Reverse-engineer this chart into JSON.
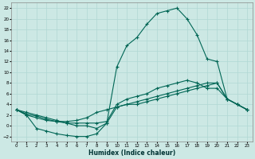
{
  "xlabel": "Humidex (Indice chaleur)",
  "background_color": "#cce8e4",
  "grid_color": "#b0d8d4",
  "line_color": "#006655",
  "xlim": [
    -0.5,
    23.5
  ],
  "ylim": [
    -3,
    23
  ],
  "xticks": [
    0,
    1,
    2,
    3,
    4,
    5,
    6,
    7,
    8,
    9,
    10,
    11,
    12,
    13,
    14,
    15,
    16,
    17,
    18,
    19,
    20,
    21,
    22,
    23
  ],
  "yticks": [
    -2,
    0,
    2,
    4,
    6,
    8,
    10,
    12,
    14,
    16,
    18,
    20,
    22
  ],
  "line_peak_x": [
    0,
    1,
    2,
    3,
    4,
    5,
    6,
    7,
    8,
    9,
    10,
    11,
    12,
    13,
    14,
    15,
    16,
    17,
    18,
    19,
    20,
    21,
    22,
    23
  ],
  "line_peak_y": [
    3,
    2.5,
    2,
    1.5,
    1,
    0.5,
    0,
    0,
    -0.5,
    0.5,
    11,
    15,
    16.5,
    19,
    21,
    21.5,
    22,
    20,
    17,
    12.5,
    12,
    5,
    4,
    3
  ],
  "line_mid_x": [
    0,
    1,
    2,
    3,
    4,
    5,
    6,
    7,
    8,
    9,
    10,
    11,
    12,
    13,
    14,
    15,
    16,
    17,
    18,
    19,
    20,
    21,
    22,
    23
  ],
  "line_mid_y": [
    3,
    2.2,
    1.8,
    1.2,
    0.8,
    0.5,
    0.5,
    0.5,
    0.5,
    0.8,
    4,
    5,
    5.5,
    6,
    7,
    7.5,
    8,
    8.5,
    8,
    7,
    7,
    5,
    4,
    3
  ],
  "line_flat_x": [
    0,
    1,
    2,
    3,
    4,
    5,
    6,
    7,
    8,
    9,
    10,
    11,
    12,
    13,
    14,
    15,
    16,
    17,
    18,
    19,
    20,
    21,
    22,
    23
  ],
  "line_flat_y": [
    3,
    2,
    1.5,
    1,
    0.8,
    0.8,
    1,
    1.5,
    2.5,
    3,
    3.5,
    4,
    4,
    4.5,
    5,
    5.5,
    6,
    6.5,
    7,
    7.5,
    8,
    5,
    4,
    3
  ],
  "line_dip_x": [
    0,
    1,
    2,
    3,
    4,
    5,
    6,
    7,
    8,
    9,
    10,
    11,
    12,
    13,
    14,
    15,
    16,
    17,
    18,
    19,
    20,
    21,
    22,
    23
  ],
  "line_dip_y": [
    3,
    2,
    -0.5,
    -1,
    -1.5,
    -1.8,
    -2,
    -2,
    -1.5,
    0.5,
    3.5,
    4,
    4.5,
    5,
    5.5,
    6,
    6.5,
    7,
    7.5,
    8,
    8,
    5,
    4,
    3
  ],
  "marker": "+",
  "markersize": 3.0,
  "linewidth": 0.8
}
